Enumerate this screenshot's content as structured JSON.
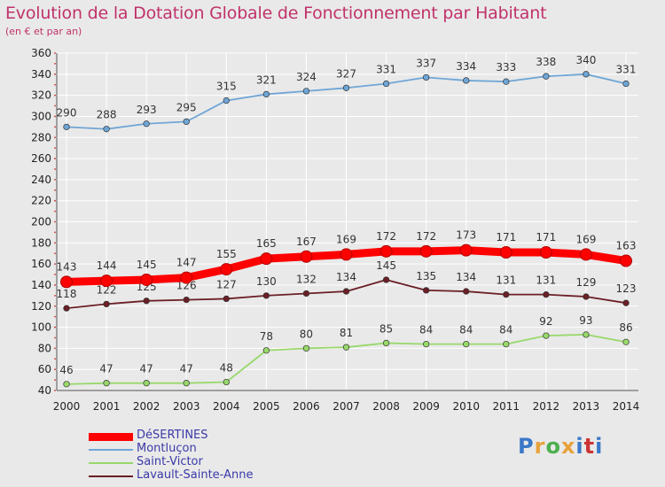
{
  "chart_data": {
    "type": "line",
    "title": "Evolution de la Dotation Globale de Fonctionnement par Habitant",
    "subtitle": "(en € et par an)",
    "x": [
      "2000",
      "2001",
      "2002",
      "2003",
      "2004",
      "2005",
      "2006",
      "2007",
      "2008",
      "2009",
      "2010",
      "2011",
      "2012",
      "2013",
      "2014"
    ],
    "ylim": [
      40,
      360
    ],
    "yticks": [
      40,
      60,
      80,
      100,
      120,
      140,
      160,
      180,
      200,
      220,
      240,
      260,
      280,
      300,
      320,
      340,
      360
    ],
    "grid": true,
    "legend_position": "bottom-left",
    "series": [
      {
        "name": "DéSERTINES",
        "color": "#ff0000",
        "values": [
          143,
          144,
          145,
          147,
          155,
          165,
          167,
          169,
          172,
          172,
          173,
          171,
          171,
          169,
          163
        ]
      },
      {
        "name": "Montluçon",
        "color": "#6fa6d6",
        "values": [
          290,
          288,
          293,
          295,
          315,
          321,
          324,
          327,
          331,
          337,
          334,
          333,
          338,
          340,
          331
        ]
      },
      {
        "name": "Saint-Victor",
        "color": "#99d86b",
        "values": [
          46,
          47,
          47,
          47,
          48,
          78,
          80,
          81,
          85,
          84,
          84,
          84,
          92,
          93,
          86
        ]
      },
      {
        "name": "Lavault-Sainte-Anne",
        "color": "#6b1f26",
        "values": [
          118,
          122,
          125,
          126,
          127,
          130,
          132,
          134,
          145,
          135,
          134,
          131,
          131,
          129,
          123
        ]
      }
    ]
  },
  "logo": {
    "text": "Proxiti",
    "colors": [
      "#3a78c8",
      "#e8a23a",
      "#4caf50",
      "#e8a23a",
      "#3a78c8",
      "#cc3333",
      "#3a78c8"
    ]
  }
}
